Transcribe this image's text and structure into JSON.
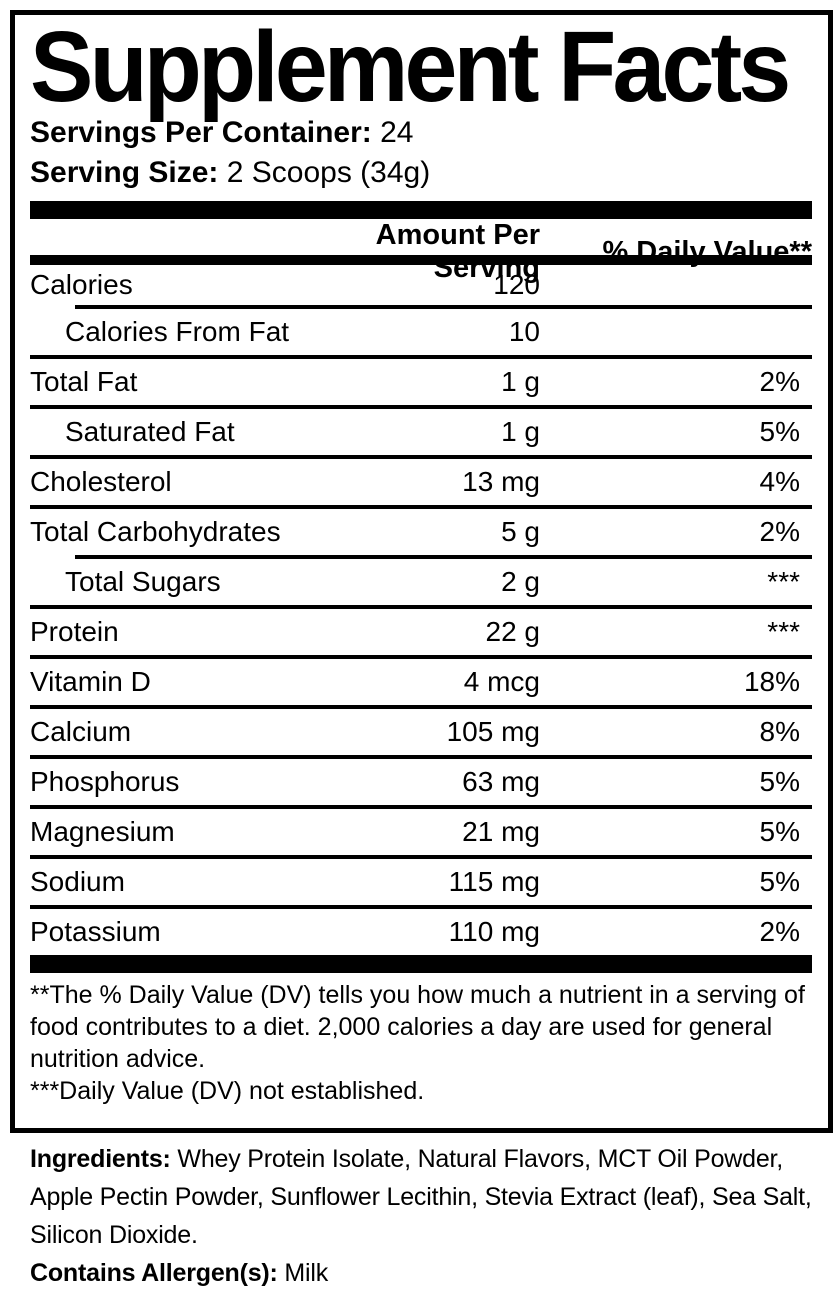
{
  "label": {
    "title": "Supplement Facts",
    "servings_per_container": {
      "label": "Servings Per Container:",
      "value": "24"
    },
    "serving_size": {
      "label": "Serving Size:",
      "value": "2 Scoops (34g)"
    },
    "columns": {
      "amount": "Amount Per Serving",
      "daily_value": "% Daily Value**"
    },
    "rows": [
      {
        "name": "Calories",
        "amount": "120",
        "dv": "",
        "indent": false,
        "sep": "none"
      },
      {
        "name": "Calories From Fat",
        "amount": "10",
        "dv": "",
        "indent": true,
        "sep": "indent"
      },
      {
        "name": "Total Fat",
        "amount": "1 g",
        "dv": "2%",
        "indent": false,
        "sep": "full"
      },
      {
        "name": "Saturated Fat",
        "amount": "1 g",
        "dv": "5%",
        "indent": true,
        "sep": "full"
      },
      {
        "name": "Cholesterol",
        "amount": "13 mg",
        "dv": "4%",
        "indent": false,
        "sep": "full"
      },
      {
        "name": "Total Carbohydrates",
        "amount": "5 g",
        "dv": "2%",
        "indent": false,
        "sep": "full"
      },
      {
        "name": "Total Sugars",
        "amount": "2 g",
        "dv": "***",
        "indent": true,
        "sep": "indent"
      },
      {
        "name": "Protein",
        "amount": "22 g",
        "dv": "***",
        "indent": false,
        "sep": "full"
      },
      {
        "name": "Vitamin D",
        "amount": "4 mcg",
        "dv": "18%",
        "indent": false,
        "sep": "full"
      },
      {
        "name": "Calcium",
        "amount": "105 mg",
        "dv": "8%",
        "indent": false,
        "sep": "full"
      },
      {
        "name": "Phosphorus",
        "amount": "63 mg",
        "dv": "5%",
        "indent": false,
        "sep": "full"
      },
      {
        "name": "Magnesium",
        "amount": "21 mg",
        "dv": "5%",
        "indent": false,
        "sep": "full"
      },
      {
        "name": "Sodium",
        "amount": "115 mg",
        "dv": "5%",
        "indent": false,
        "sep": "full"
      },
      {
        "name": "Potassium",
        "amount": "110 mg",
        "dv": "2%",
        "indent": false,
        "sep": "full"
      }
    ],
    "footnotes": [
      "**The % Daily Value (DV) tells you how much a nutrient in a serving of food contributes to a diet. 2,000 calories a day are used for general nutrition advice.",
      "***Daily Value (DV) not established."
    ]
  },
  "ingredients": {
    "label": "Ingredients:",
    "value": "Whey Protein Isolate, Natural Flavors, MCT Oil Powder, Apple Pectin Powder, Sunflower Lecithin, Stevia Extract (leaf), Sea Salt, Silicon Dioxide."
  },
  "allergens": {
    "label": "Contains Allergen(s):",
    "value": "Milk"
  },
  "colors": {
    "text": "#000000",
    "background": "#ffffff"
  }
}
